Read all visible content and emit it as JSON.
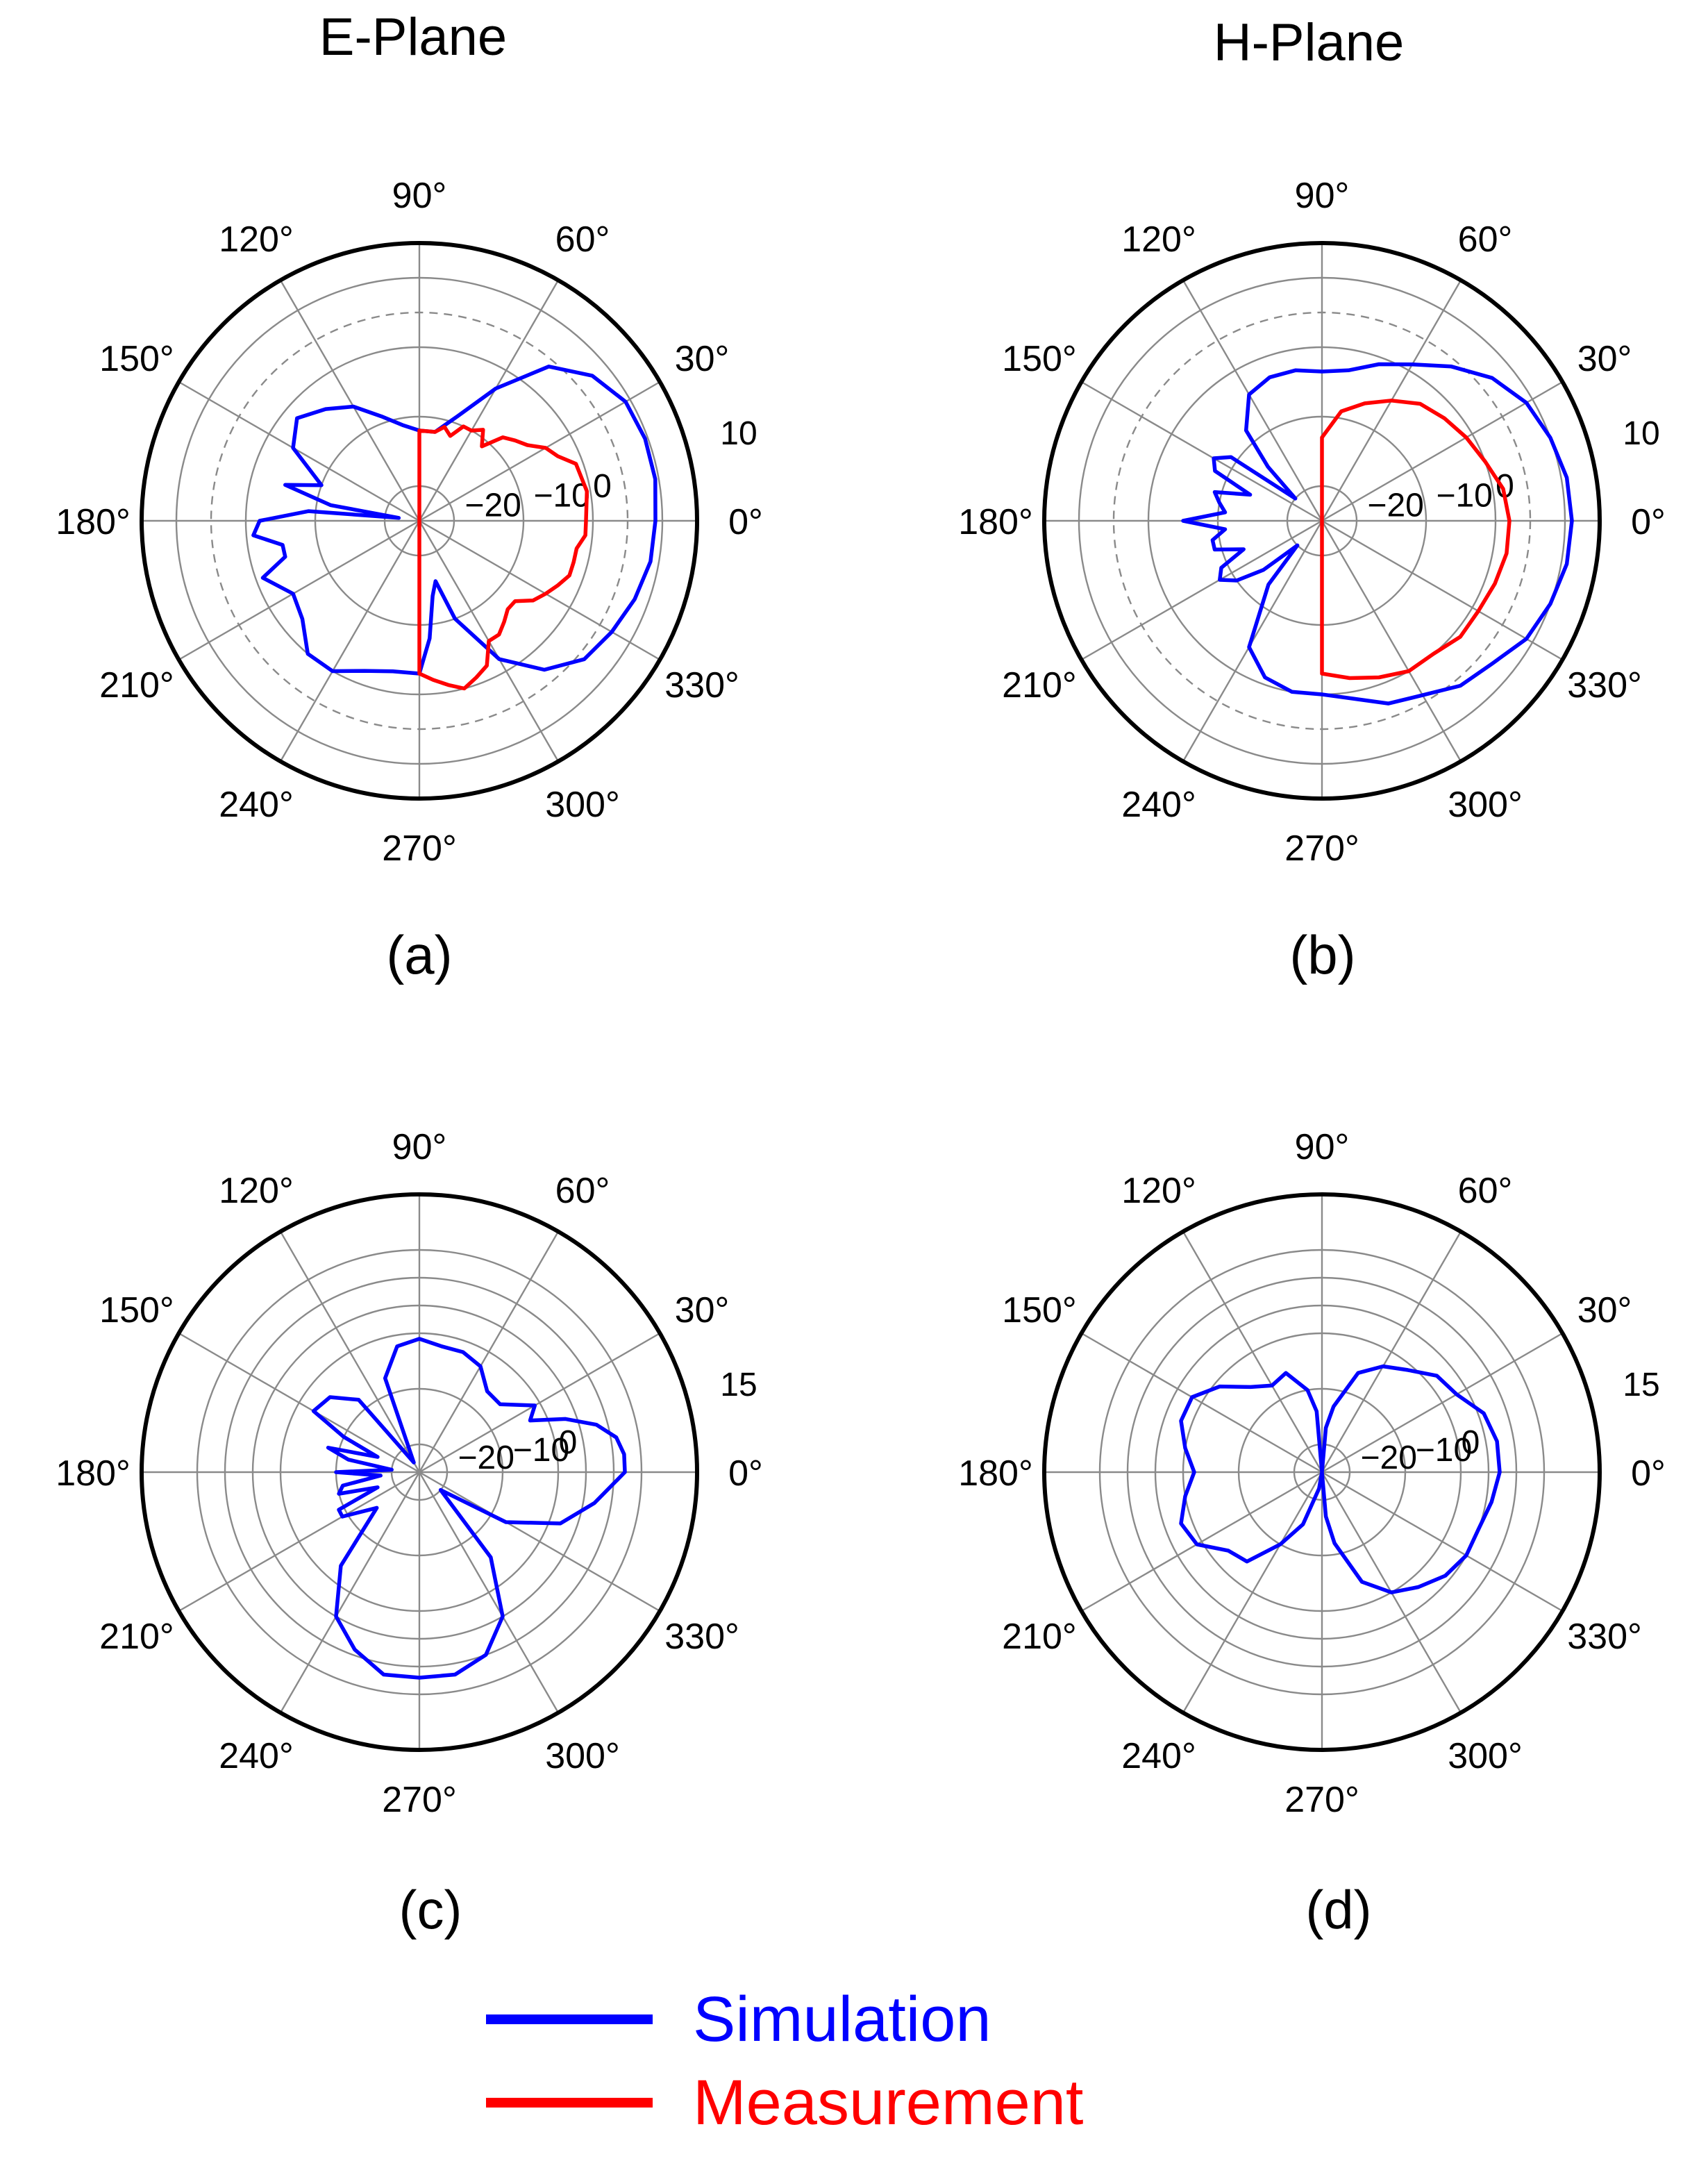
{
  "columns": {
    "left": "E-Plane",
    "right": "H-Plane"
  },
  "legend": [
    {
      "label": "Simulation",
      "color": "#0000ff"
    },
    {
      "label": "Measurement",
      "color": "#ff0000"
    }
  ],
  "chart_data": [
    {
      "panel": "(a)",
      "type": "polar",
      "theta_ticks": [
        "0°",
        "30°",
        "60°",
        "90°",
        "120°",
        "150°",
        "180°",
        "210°",
        "240°",
        "270°",
        "300°",
        "330°"
      ],
      "r_tick_labels": [
        "−20",
        "−10",
        "0",
        "10"
      ],
      "r_range": [
        -25,
        15
      ],
      "r_tick_values": [
        -20,
        -10,
        0,
        10
      ],
      "dashed_ring": 5,
      "series": [
        {
          "name": "Simulation",
          "color": "#0000ff",
          "points": [
            [
              0,
              9
            ],
            [
              10,
              9.5
            ],
            [
              20,
              9.6
            ],
            [
              30,
              9.3
            ],
            [
              40,
              7.5
            ],
            [
              50,
              4
            ],
            [
              60,
              -3
            ],
            [
              70,
              -9
            ],
            [
              80,
              -12
            ],
            [
              90,
              -12
            ],
            [
              100,
              -11
            ],
            [
              110,
              -9
            ],
            [
              120,
              -6
            ],
            [
              130,
              -4
            ],
            [
              140,
              -2
            ],
            [
              150,
              -4
            ],
            [
              160,
              -10
            ],
            [
              165,
              -5
            ],
            [
              170,
              -12
            ],
            [
              172,
              -22
            ],
            [
              175,
              -9
            ],
            [
              180,
              -2
            ],
            [
              185,
              -1
            ],
            [
              190,
              -5
            ],
            [
              195,
              -5
            ],
            [
              200,
              -1
            ],
            [
              210,
              -4
            ],
            [
              220,
              -3
            ],
            [
              230,
              0
            ],
            [
              240,
              0
            ],
            [
              250,
              -2
            ],
            [
              260,
              -3
            ],
            [
              270,
              -3
            ],
            [
              275,
              -8
            ],
            [
              280,
              -14
            ],
            [
              285,
              -16
            ],
            [
              290,
              -10
            ],
            [
              300,
              -2
            ],
            [
              310,
              3
            ],
            [
              320,
              6
            ],
            [
              330,
              7
            ],
            [
              340,
              8
            ],
            [
              350,
              8.8
            ],
            [
              360,
              9
            ]
          ]
        },
        {
          "name": "Measurement",
          "color": "#ff0000",
          "points": [
            [
              0,
              -1
            ],
            [
              10,
              -0.5
            ],
            [
              20,
              -1
            ],
            [
              25,
              -3
            ],
            [
              30,
              -4
            ],
            [
              35,
              -6
            ],
            [
              40,
              -7
            ],
            [
              45,
              -8
            ],
            [
              50,
              -11
            ],
            [
              55,
              -9
            ],
            [
              60,
              -10
            ],
            [
              65,
              -10
            ],
            [
              70,
              -12
            ],
            [
              75,
              -11
            ],
            [
              80,
              -12
            ],
            [
              90,
              -12
            ],
            [
              270,
              -3
            ],
            [
              275,
              -2
            ],
            [
              280,
              -1
            ],
            [
              285,
              0
            ],
            [
              290,
              -1
            ],
            [
              295,
              -2
            ],
            [
              300,
              -5
            ],
            [
              305,
              -5
            ],
            [
              310,
              -6
            ],
            [
              315,
              -7
            ],
            [
              320,
              -7
            ],
            [
              325,
              -5
            ],
            [
              330,
              -4
            ],
            [
              335,
              -3
            ],
            [
              340,
              -2
            ],
            [
              345,
              -2
            ],
            [
              350,
              -2
            ],
            [
              355,
              -1
            ],
            [
              360,
              -1
            ]
          ]
        }
      ]
    },
    {
      "panel": "(b)",
      "type": "polar",
      "theta_ticks": [
        "0°",
        "30°",
        "60°",
        "90°",
        "120°",
        "150°",
        "180°",
        "210°",
        "240°",
        "270°",
        "300°",
        "330°"
      ],
      "r_tick_labels": [
        "−20",
        "−10",
        "0",
        "10"
      ],
      "r_range": [
        -25,
        15
      ],
      "r_tick_values": [
        -20,
        -10,
        0,
        10
      ],
      "dashed_ring": 5,
      "series": [
        {
          "name": "Simulation",
          "color": "#0000ff",
          "points": [
            [
              0,
              11
            ],
            [
              10,
              10.8
            ],
            [
              20,
              10
            ],
            [
              30,
              9
            ],
            [
              40,
              7
            ],
            [
              50,
              4
            ],
            [
              60,
              1
            ],
            [
              70,
              -1
            ],
            [
              80,
              -3
            ],
            [
              90,
              -3.5
            ],
            [
              100,
              -3
            ],
            [
              110,
              -3
            ],
            [
              120,
              -4
            ],
            [
              130,
              -8
            ],
            [
              135,
              -14
            ],
            [
              140,
              -20
            ],
            [
              145,
              -9
            ],
            [
              150,
              -7
            ],
            [
              155,
              -8
            ],
            [
              160,
              -14
            ],
            [
              165,
              -9
            ],
            [
              170,
              -10
            ],
            [
              175,
              -11
            ],
            [
              180,
              -5
            ],
            [
              185,
              -11
            ],
            [
              190,
              -9
            ],
            [
              195,
              -9
            ],
            [
              200,
              -13
            ],
            [
              205,
              -9
            ],
            [
              210,
              -8
            ],
            [
              215,
              -10
            ],
            [
              220,
              -14
            ],
            [
              225,
              -20
            ],
            [
              230,
              -13
            ],
            [
              240,
              -4
            ],
            [
              250,
              -1
            ],
            [
              260,
              0
            ],
            [
              270,
              0
            ],
            [
              280,
              1
            ],
            [
              290,
              3
            ],
            [
              300,
              4
            ],
            [
              310,
              6
            ],
            [
              320,
              7
            ],
            [
              330,
              9
            ],
            [
              340,
              10
            ],
            [
              350,
              10.8
            ],
            [
              360,
              11
            ]
          ]
        },
        {
          "name": "Measurement",
          "color": "#ff0000",
          "points": [
            [
              0,
              2
            ],
            [
              10,
              1.5
            ],
            [
              20,
              0
            ],
            [
              30,
              -1
            ],
            [
              40,
              -2
            ],
            [
              50,
              -3
            ],
            [
              60,
              -5
            ],
            [
              70,
              -7
            ],
            [
              80,
              -9
            ],
            [
              90,
              -13
            ],
            [
              270,
              -3
            ],
            [
              280,
              -2
            ],
            [
              290,
              -1
            ],
            [
              300,
              0
            ],
            [
              310,
              0
            ],
            [
              320,
              1
            ],
            [
              330,
              1
            ],
            [
              340,
              1.5
            ],
            [
              350,
              2
            ],
            [
              360,
              2
            ]
          ]
        }
      ]
    },
    {
      "panel": "(c)",
      "type": "polar",
      "theta_ticks": [
        "0°",
        "30°",
        "60°",
        "90°",
        "120°",
        "150°",
        "180°",
        "210°",
        "240°",
        "270°",
        "300°",
        "330°"
      ],
      "r_tick_labels": [
        "−20",
        "−10",
        "0",
        "15"
      ],
      "r_range": [
        -25,
        25
      ],
      "r_tick_values": [
        -20,
        -10,
        0,
        15
      ],
      "extra_rings": [
        5,
        10
      ],
      "series": [
        {
          "name": "Simulation",
          "color": "#0000ff",
          "points": [
            [
              0,
              12
            ],
            [
              5,
              12
            ],
            [
              10,
              11
            ],
            [
              15,
              8
            ],
            [
              20,
              3
            ],
            [
              25,
              -3
            ],
            [
              30,
              -1
            ],
            [
              40,
              -6
            ],
            [
              50,
              -6
            ],
            [
              60,
              -3
            ],
            [
              70,
              -2
            ],
            [
              80,
              -2
            ],
            [
              90,
              -1
            ],
            [
              100,
              -2
            ],
            [
              110,
              -7
            ],
            [
              120,
              -23
            ],
            [
              130,
              -8
            ],
            [
              140,
              -4
            ],
            [
              150,
              -3
            ],
            [
              155,
              -10
            ],
            [
              160,
              -17
            ],
            [
              165,
              -8
            ],
            [
              170,
              -12
            ],
            [
              175,
              -20
            ],
            [
              180,
              -10
            ],
            [
              185,
              -18
            ],
            [
              190,
              -11
            ],
            [
              195,
              -10
            ],
            [
              200,
              -17
            ],
            [
              205,
              -9
            ],
            [
              210,
              -9
            ],
            [
              220,
              -15
            ],
            [
              230,
              -3
            ],
            [
              240,
              5
            ],
            [
              250,
              9
            ],
            [
              260,
              12
            ],
            [
              270,
              12
            ],
            [
              280,
              12
            ],
            [
              290,
              10
            ],
            [
              300,
              5
            ],
            [
              310,
              -5
            ],
            [
              320,
              -20
            ],
            [
              330,
              -7
            ],
            [
              340,
              2
            ],
            [
              350,
              7
            ],
            [
              360,
              12
            ]
          ]
        }
      ]
    },
    {
      "panel": "(d)",
      "type": "polar",
      "theta_ticks": [
        "0°",
        "30°",
        "60°",
        "90°",
        "120°",
        "150°",
        "180°",
        "210°",
        "240°",
        "270°",
        "300°",
        "330°"
      ],
      "r_tick_labels": [
        "−20",
        "−10",
        "0",
        "15"
      ],
      "r_range": [
        -25,
        25
      ],
      "r_tick_values": [
        -20,
        -10,
        0,
        15
      ],
      "extra_rings": [
        5,
        10
      ],
      "series": [
        {
          "name": "Simulation",
          "color": "#0000ff",
          "points": [
            [
              0,
              7
            ],
            [
              10,
              7
            ],
            [
              20,
              6
            ],
            [
              30,
              3
            ],
            [
              40,
              2
            ],
            [
              50,
              -1
            ],
            [
              60,
              -3
            ],
            [
              70,
              -6
            ],
            [
              80,
              -13
            ],
            [
              85,
              -17
            ],
            [
              90,
              -25
            ],
            [
              95,
              -14
            ],
            [
              100,
              -10
            ],
            [
              110,
              -6
            ],
            [
              120,
              -7
            ],
            [
              130,
              -5
            ],
            [
              140,
              -1
            ],
            [
              150,
              2
            ],
            [
              160,
              2
            ],
            [
              170,
              0
            ],
            [
              180,
              -2
            ],
            [
              190,
              0
            ],
            [
              200,
              2
            ],
            [
              210,
              1
            ],
            [
              220,
              -3
            ],
            [
              230,
              -4
            ],
            [
              240,
              -10
            ],
            [
              250,
              -15
            ],
            [
              260,
              -22
            ],
            [
              270,
              -25
            ],
            [
              275,
              -17
            ],
            [
              280,
              -12
            ],
            [
              290,
              -4
            ],
            [
              300,
              0
            ],
            [
              310,
              2
            ],
            [
              320,
              4
            ],
            [
              330,
              5
            ],
            [
              340,
              5
            ],
            [
              350,
              6
            ],
            [
              360,
              7
            ]
          ]
        }
      ]
    }
  ]
}
